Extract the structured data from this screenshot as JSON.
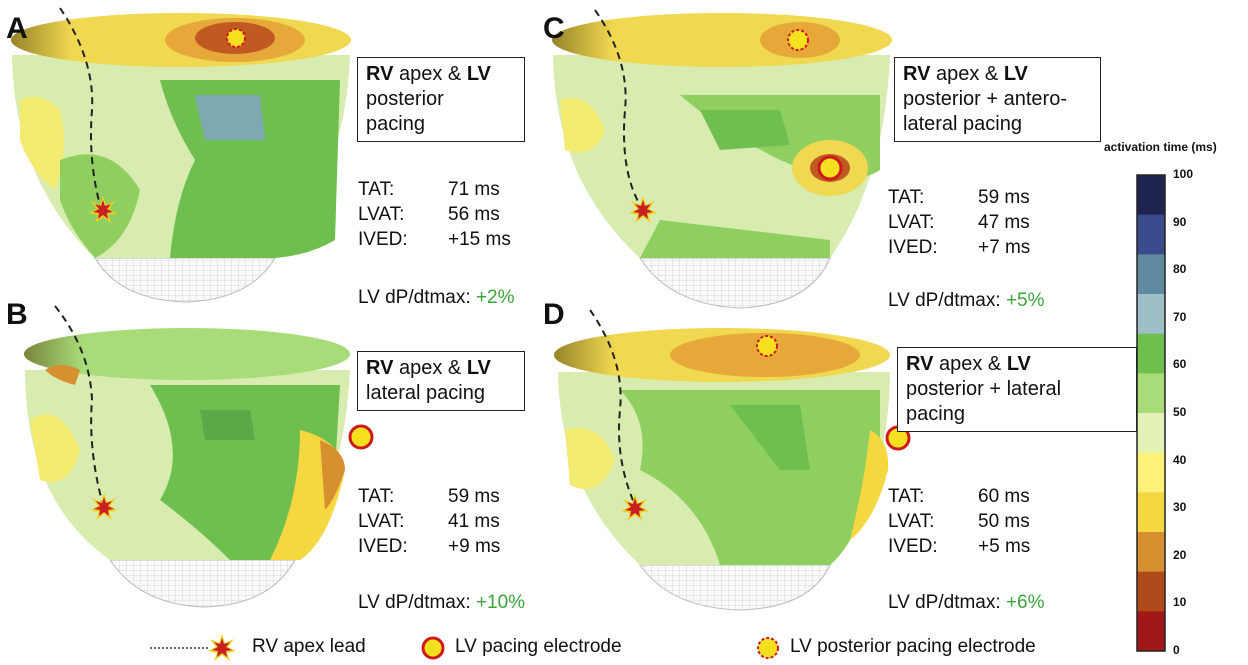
{
  "panels": [
    {
      "letter": "A",
      "title_bold_1": "RV",
      "title_1": " apex & ",
      "title_bold_2": "LV",
      "title_rest": "posterior pacing",
      "tat_label": "TAT:",
      "tat": "71 ms",
      "lvat_label": "LVAT:",
      "lvat": "56 ms",
      "ived_label": "IVED:",
      "ived": "+15 ms",
      "dpdt_label": "LV dP/dtmax: ",
      "dpdt": "+2%"
    },
    {
      "letter": "B",
      "title_bold_1": "RV",
      "title_1": " apex & ",
      "title_bold_2": "LV",
      "title_rest": "lateral pacing",
      "tat_label": "TAT:",
      "tat": "59 ms",
      "lvat_label": "LVAT:",
      "lvat": "41 ms",
      "ived_label": "IVED:",
      "ived": "+9 ms",
      "dpdt_label": "LV dP/dtmax: ",
      "dpdt": "+10%"
    },
    {
      "letter": "C",
      "title_bold_1": "RV",
      "title_1": " apex & ",
      "title_bold_2": "LV",
      "title_rest": "posterior + antero-lateral pacing",
      "tat_label": "TAT:",
      "tat": "59 ms",
      "lvat_label": "LVAT:",
      "lvat": "47 ms",
      "ived_label": "IVED:",
      "ived": "+7 ms",
      "dpdt_label": "LV dP/dtmax: ",
      "dpdt": "+5%"
    },
    {
      "letter": "D",
      "title_bold_1": "RV",
      "title_1": " apex & ",
      "title_bold_2": "LV",
      "title_rest": "posterior + lateral pacing",
      "tat_label": "TAT:",
      "tat": "60 ms",
      "lvat_label": "LVAT:",
      "lvat": "50 ms",
      "ived_label": "IVED:",
      "ived": "+5 ms",
      "dpdt_label": "LV dP/dtmax: ",
      "dpdt": "+6%"
    }
  ],
  "legend": {
    "rv_lead": "RV apex lead",
    "lv_electrode": "LV pacing electrode",
    "lv_posterior": "LV posterior pacing electrode"
  },
  "colorbar": {
    "title": "activation time (ms)",
    "ticks": [
      "100",
      "90",
      "80",
      "70",
      "60",
      "50",
      "40",
      "30",
      "20",
      "10",
      "0"
    ],
    "colors": [
      "#1f2350",
      "#3a4a8a",
      "#5f8aa0",
      "#9fbfc8",
      "#6fbf50",
      "#a8dc78",
      "#e4f2b8",
      "#fff27a",
      "#f5d840",
      "#d79030",
      "#b04a1a",
      "#a01818"
    ]
  },
  "colors": {
    "green_text": "#3aa53a",
    "pace_fill": "#f5e020",
    "pace_ring": "#cc1a1a"
  }
}
